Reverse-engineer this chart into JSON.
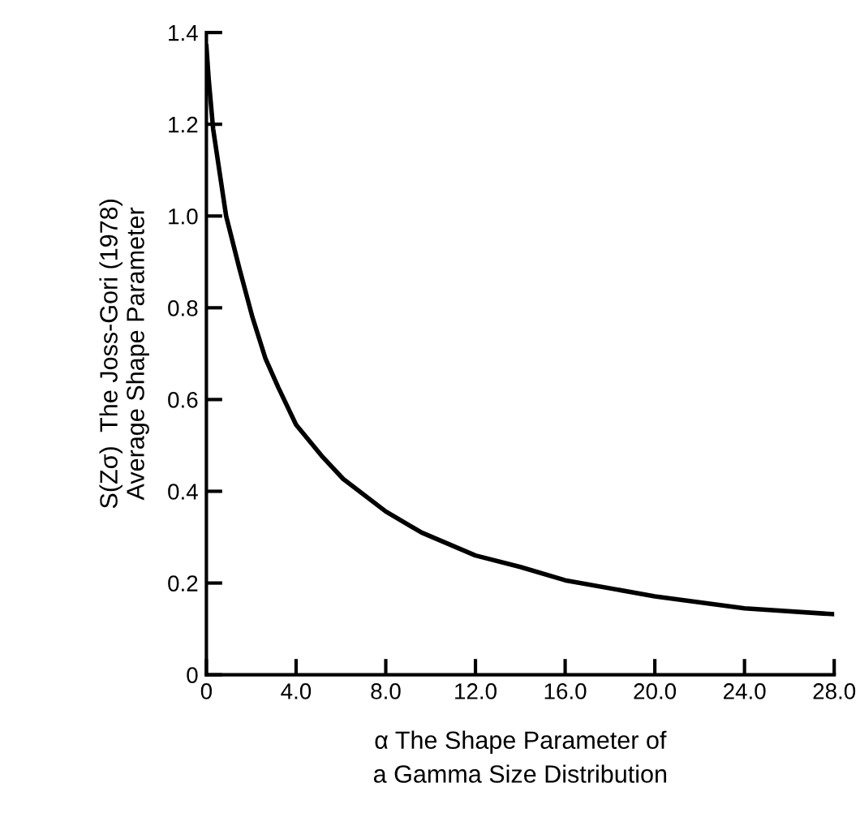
{
  "chart_data": {
    "type": "line",
    "xlabel": "α The Shape Parameter of\na Gamma Size Distribution",
    "ylabel": "S(Zσ)  The Joss-Gori (1978)\nAverage Shape Parameter",
    "x": [
      0,
      0.1,
      0.3,
      0.88,
      1.47,
      2.05,
      2.63,
      3.2,
      4.0,
      5.2,
      6.1,
      8.0,
      9.6,
      12.0,
      14.0,
      16.0,
      20.0,
      24.0,
      28.0
    ],
    "series": [
      {
        "color": "#000000",
        "values": [
          1.37,
          1.3,
          1.19,
          1.0,
          0.886,
          0.78,
          0.69,
          0.627,
          0.545,
          0.474,
          0.427,
          0.356,
          0.31,
          0.26,
          0.235,
          0.206,
          0.171,
          0.145,
          0.132
        ]
      }
    ],
    "xlim": [
      0,
      28
    ],
    "xticks": [
      0,
      {
        "value": 4,
        "label": "4.0"
      },
      {
        "value": 8,
        "label": "8.0"
      },
      {
        "value": 12,
        "label": "12.0"
      },
      {
        "value": 16,
        "label": "16.0"
      },
      {
        "value": 20,
        "label": "20.0"
      },
      {
        "value": 24,
        "label": "24.0"
      },
      {
        "value": 28,
        "label": "28.0"
      }
    ],
    "ylim": [
      0,
      1.4
    ],
    "yticks": [
      0,
      0.2,
      0.4,
      0.6,
      0.8,
      {
        "value": 1,
        "label": "1.0"
      },
      1.2,
      1.4
    ],
    "grid": false,
    "legend": false,
    "marker": "none",
    "line_style": "solid"
  }
}
